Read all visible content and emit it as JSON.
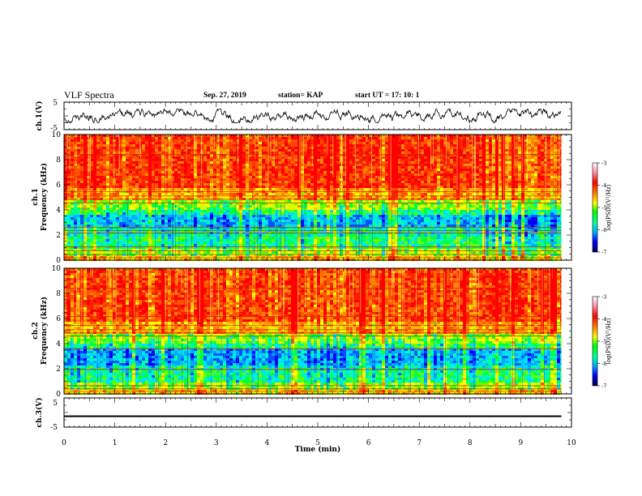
{
  "header": {
    "title": "VLF Spectra",
    "date": "Sep. 27, 2019",
    "station": "station= KAP",
    "start_label": "start  UT  =",
    "start_time": "17: 10: 1"
  },
  "colors": {
    "spectrum": [
      "#000080",
      "#0000ff",
      "#00b4ff",
      "#00ffaa",
      "#33ff33",
      "#aaff00",
      "#ffff00",
      "#ffaa00",
      "#ff4400",
      "#ff0000",
      "#ff99aa",
      "#ffffff"
    ]
  },
  "chart_data": [
    {
      "type": "line",
      "panel": "ch1-waveform",
      "ylabel": "ch.1(V)",
      "ylim": [
        -5,
        5
      ],
      "yticks": [
        "5",
        "-5"
      ],
      "xlim": [
        0,
        10
      ],
      "amplitude_range": [
        -2.5,
        2.5
      ]
    },
    {
      "type": "heatmap",
      "panel": "ch1-spectrogram",
      "ylabel_top": "ch.1",
      "ylabel": "Frequency (kHz)",
      "ylim": [
        0,
        10
      ],
      "yticks": [
        "0",
        "2",
        "4",
        "6",
        "8",
        "10"
      ],
      "xlim": [
        0,
        10
      ],
      "data_end_min": 9.8,
      "colorbar": {
        "label": "log(PSD)(V²/Hz)",
        "range": [
          -7,
          -3
        ],
        "ticks": [
          "-3",
          "-4",
          "-5",
          "-6",
          "-7"
        ]
      },
      "lines_khz": [
        0.2,
        0.45,
        0.75,
        1.05,
        2.15,
        2.35,
        2.6,
        4.55,
        4.85,
        5.1,
        5.45,
        8.4
      ]
    },
    {
      "type": "heatmap",
      "panel": "ch2-spectrogram",
      "ylabel_top": "ch.2",
      "ylabel": "Frequency (kHz)",
      "ylim": [
        0,
        10
      ],
      "yticks": [
        "0",
        "2",
        "4",
        "6",
        "8",
        "10"
      ],
      "xlim": [
        0,
        10
      ],
      "data_end_min": 9.8,
      "colorbar": {
        "label": "log(PSD)(V²/Hz)",
        "range": [
          -7,
          -3
        ],
        "ticks": [
          "-3",
          "-4",
          "-5",
          "-6",
          "-7"
        ]
      },
      "lines_khz": [
        0.2,
        0.4,
        0.65,
        1.95,
        3.6,
        4.6,
        4.85,
        5.1,
        5.45,
        6.15,
        8.4
      ]
    },
    {
      "type": "line",
      "panel": "ch3-waveform",
      "ylabel": "ch.3(V)",
      "ylim": [
        -5,
        5
      ],
      "yticks": [
        "5",
        "-5"
      ],
      "xlim": [
        0,
        10
      ],
      "level_v": [
        -1.0,
        -1.4
      ],
      "xlabel": "Time (min)",
      "xticks": [
        "0",
        "1",
        "2",
        "3",
        "4",
        "5",
        "6",
        "7",
        "8",
        "9",
        "10"
      ]
    }
  ]
}
